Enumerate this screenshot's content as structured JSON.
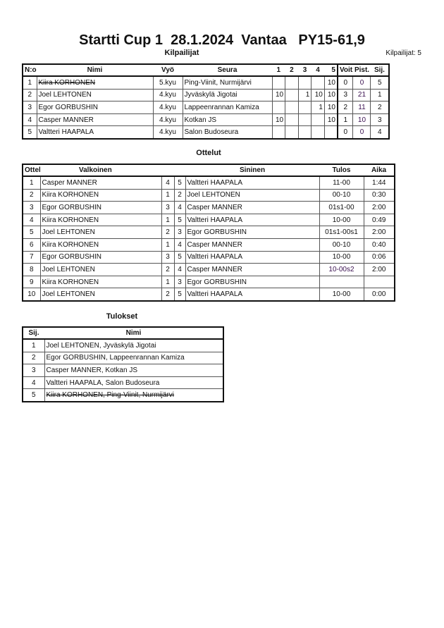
{
  "title": "Startti Cup 1  28.1.2024  Vantaa   PY15-61,9",
  "competitors": {
    "heading": "Kilpailijat",
    "count_label": "Kilpailijat: 5",
    "columns": [
      "N:o",
      "Nimi",
      "Vyö",
      "Seura",
      "1",
      "2",
      "3",
      "4",
      "5",
      "Voit.",
      "Pist.",
      "Sij."
    ],
    "rows": [
      {
        "no": "1",
        "name": "Kiira KORHONEN",
        "belt": "5.kyu",
        "club": "Ping-Viinit, Nurmijärvi",
        "s": [
          "",
          "",
          "",
          "",
          "10"
        ],
        "wins": "0",
        "points": "0",
        "place": "5",
        "withdrawn": true
      },
      {
        "no": "2",
        "name": "Joel LEHTONEN",
        "belt": "4.kyu",
        "club": "Jyväskylä Jigotai",
        "s": [
          "10",
          "",
          "1",
          "10",
          "10"
        ],
        "wins": "3",
        "points": "21",
        "place": "1"
      },
      {
        "no": "3",
        "name": "Egor GORBUSHIN",
        "belt": "4.kyu",
        "club": "Lappeenrannan Kamiza",
        "s": [
          "",
          "",
          "",
          "1",
          "10"
        ],
        "wins": "2",
        "points": "11",
        "place": "2"
      },
      {
        "no": "4",
        "name": "Casper MANNER",
        "belt": "4.kyu",
        "club": "Kotkan JS",
        "s": [
          "10",
          "",
          "",
          "",
          "10"
        ],
        "wins": "1",
        "points": "10",
        "place": "3"
      },
      {
        "no": "5",
        "name": "Valtteri HAAPALA",
        "belt": "4.kyu",
        "club": "Salon Budoseura",
        "s": [
          "",
          "",
          "",
          "",
          ""
        ],
        "wins": "0",
        "points": "0",
        "place": "4"
      }
    ]
  },
  "matches": {
    "heading": "Ottelut",
    "columns": [
      "Ottelu",
      "Valkoinen",
      "Sininen",
      "Tulos",
      "Aika"
    ],
    "rows": [
      {
        "no": "1",
        "white": "Casper MANNER",
        "wn": "4",
        "bn": "5",
        "blue": "Valtteri HAAPALA",
        "result": "11-00",
        "time": "1:44"
      },
      {
        "no": "2",
        "white": "Kiira KORHONEN",
        "wn": "1",
        "bn": "2",
        "blue": "Joel LEHTONEN",
        "result": "00-10",
        "time": "0:30"
      },
      {
        "no": "3",
        "white": "Egor GORBUSHIN",
        "wn": "3",
        "bn": "4",
        "blue": "Casper MANNER",
        "result": "01s1-00",
        "time": "2:00"
      },
      {
        "no": "4",
        "white": "Kiira KORHONEN",
        "wn": "1",
        "bn": "5",
        "blue": "Valtteri HAAPALA",
        "result": "10-00",
        "time": "0:49"
      },
      {
        "no": "5",
        "white": "Joel LEHTONEN",
        "wn": "2",
        "bn": "3",
        "blue": "Egor GORBUSHIN",
        "result": "01s1-00s1",
        "time": "2:00"
      },
      {
        "no": "6",
        "white": "Kiira KORHONEN",
        "wn": "1",
        "bn": "4",
        "blue": "Casper MANNER",
        "result": "00-10",
        "time": "0:40"
      },
      {
        "no": "7",
        "white": "Egor GORBUSHIN",
        "wn": "3",
        "bn": "5",
        "blue": "Valtteri HAAPALA",
        "result": "10-00",
        "time": "0:06"
      },
      {
        "no": "8",
        "white": "Joel LEHTONEN",
        "wn": "2",
        "bn": "4",
        "blue": "Casper MANNER",
        "result": "10-00s2",
        "time": "2:00"
      },
      {
        "no": "9",
        "white": "Kiira KORHONEN",
        "wn": "1",
        "bn": "3",
        "blue": "Egor GORBUSHIN",
        "result": "",
        "time": ""
      },
      {
        "no": "10",
        "white": "Joel LEHTONEN",
        "wn": "2",
        "bn": "5",
        "blue": "Valtteri HAAPALA",
        "result": "10-00",
        "time": "0:00"
      }
    ]
  },
  "results": {
    "heading": "Tulokset",
    "columns": [
      "Sij.",
      "Nimi"
    ],
    "rows": [
      {
        "place": "1",
        "name": "Joel LEHTONEN, Jyväskylä Jigotai"
      },
      {
        "place": "2",
        "name": "Egor GORBUSHIN, Lappeenrannan Kamiza"
      },
      {
        "place": "3",
        "name": "Casper MANNER, Kotkan JS"
      },
      {
        "place": "4",
        "name": "Valtteri HAAPALA, Salon Budoseura"
      },
      {
        "place": "5",
        "name": "Kiira KORHONEN, Ping-Viinit, Nurmijärvi",
        "withdrawn": true
      }
    ]
  }
}
